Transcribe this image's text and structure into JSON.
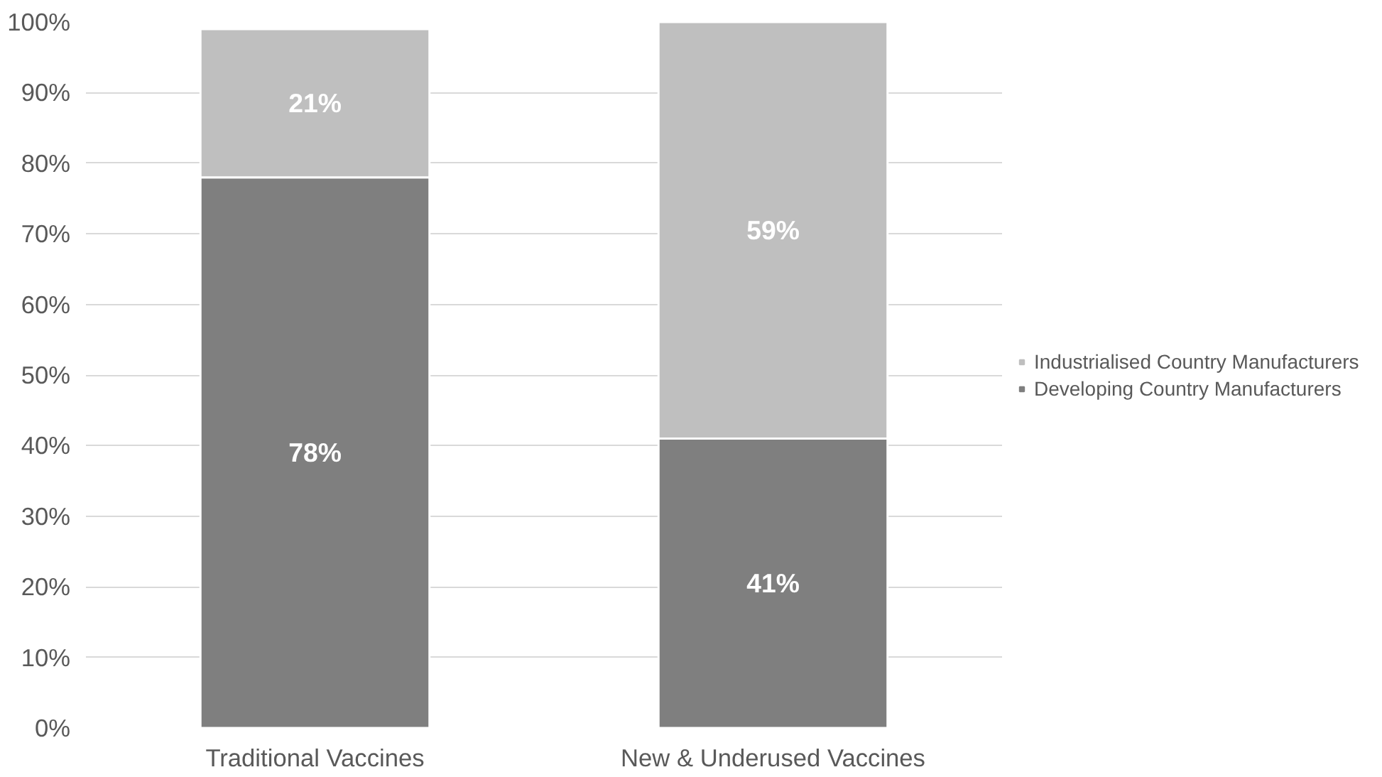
{
  "chart_data": {
    "type": "bar",
    "stacked": true,
    "categories": [
      "Traditional Vaccines",
      "New & Underused Vaccines"
    ],
    "series": [
      {
        "name": "Developing Country Manufacturers",
        "color": "#7f7f7f",
        "values": [
          78,
          41
        ],
        "value_labels": [
          "78%",
          "41%"
        ]
      },
      {
        "name": "Industrialised Country Manufacturers",
        "color": "#bfbfbf",
        "values": [
          21,
          59
        ],
        "value_labels": [
          "21%",
          "59%"
        ]
      }
    ],
    "ylim": [
      0,
      100
    ],
    "yticks": [
      {
        "value": 0,
        "label": "0%"
      },
      {
        "value": 10,
        "label": "10%"
      },
      {
        "value": 20,
        "label": "20%"
      },
      {
        "value": 30,
        "label": "30%"
      },
      {
        "value": 40,
        "label": "40%"
      },
      {
        "value": 50,
        "label": "50%"
      },
      {
        "value": 60,
        "label": "60%"
      },
      {
        "value": 70,
        "label": "70%"
      },
      {
        "value": 80,
        "label": "80%"
      },
      {
        "value": 90,
        "label": "90%"
      },
      {
        "value": 100,
        "label": "100%"
      }
    ],
    "grid": "y",
    "legend": "right"
  }
}
